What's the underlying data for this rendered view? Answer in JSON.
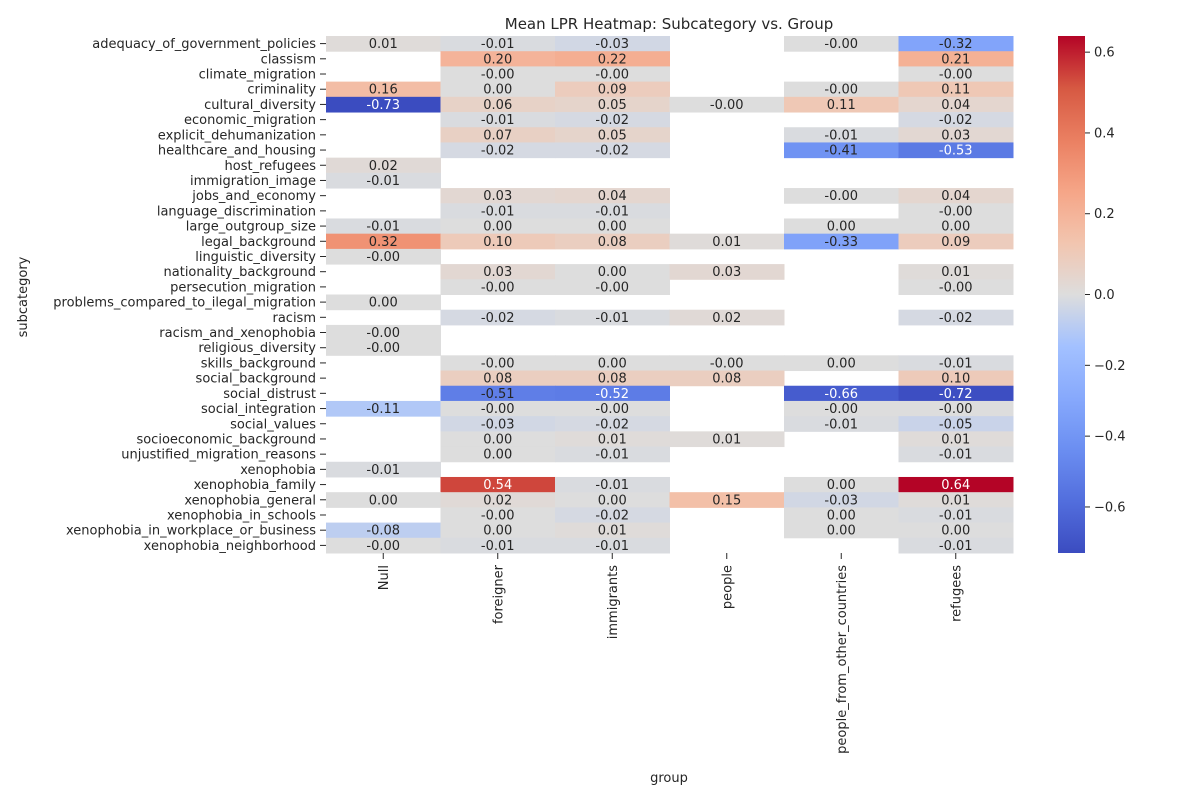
{
  "chart_data": {
    "type": "heatmap",
    "title": "Mean LPR Heatmap: Subcategory vs. Group",
    "xlabel": "group",
    "ylabel": "subcategory",
    "columns": [
      "Null",
      "foreigner",
      "immigrants",
      "people",
      "people_from_other_countries",
      "refugees"
    ],
    "rows": [
      "adequacy_of_government_policies",
      "classism",
      "climate_migration",
      "criminality",
      "cultural_diversity",
      "economic_migration",
      "explicit_dehumanization",
      "healthcare_and_housing",
      "host_refugees",
      "immigration_image",
      "jobs_and_economy",
      "language_discrimination",
      "large_outgroup_size",
      "legal_background",
      "linguistic_diversity",
      "nationality_background",
      "persecution_migration",
      "problems_compared_to_ilegal_migration",
      "racism",
      "racism_and_xenophobia",
      "religious_diversity",
      "skills_background",
      "social_background",
      "social_distrust",
      "social_integration",
      "social_values",
      "socioeconomic_background",
      "unjustified_migration_reasons",
      "xenophobia",
      "xenophobia_family",
      "xenophobia_general",
      "xenophobia_in_schools",
      "xenophobia_in_workplace_or_business",
      "xenophobia_neighborhood"
    ],
    "values": [
      [
        0.01,
        -0.01,
        -0.03,
        null,
        -0.0,
        -0.32
      ],
      [
        null,
        0.2,
        0.22,
        null,
        null,
        0.21
      ],
      [
        null,
        -0.0,
        -0.0,
        null,
        null,
        -0.0
      ],
      [
        0.16,
        0.0,
        0.09,
        null,
        -0.0,
        0.11
      ],
      [
        -0.73,
        0.06,
        0.05,
        -0.0,
        0.11,
        0.04
      ],
      [
        null,
        -0.01,
        -0.02,
        null,
        null,
        -0.02
      ],
      [
        null,
        0.07,
        0.05,
        null,
        -0.01,
        0.03
      ],
      [
        null,
        -0.02,
        -0.02,
        null,
        -0.41,
        -0.53
      ],
      [
        0.02,
        null,
        null,
        null,
        null,
        null
      ],
      [
        -0.01,
        null,
        null,
        null,
        null,
        null
      ],
      [
        null,
        0.03,
        0.04,
        null,
        -0.0,
        0.04
      ],
      [
        null,
        -0.01,
        -0.01,
        null,
        null,
        -0.0
      ],
      [
        -0.01,
        0.0,
        0.0,
        null,
        0.0,
        0.0
      ],
      [
        0.32,
        0.1,
        0.08,
        0.01,
        -0.33,
        0.09
      ],
      [
        -0.0,
        null,
        null,
        null,
        null,
        null
      ],
      [
        null,
        0.03,
        0.0,
        0.03,
        null,
        0.01
      ],
      [
        null,
        -0.0,
        -0.0,
        null,
        null,
        -0.0
      ],
      [
        0.0,
        null,
        null,
        null,
        null,
        null
      ],
      [
        null,
        -0.02,
        -0.01,
        0.02,
        null,
        -0.02
      ],
      [
        -0.0,
        null,
        null,
        null,
        null,
        null
      ],
      [
        -0.0,
        null,
        null,
        null,
        null,
        null
      ],
      [
        null,
        -0.0,
        0.0,
        -0.0,
        0.0,
        -0.01
      ],
      [
        null,
        0.08,
        0.08,
        0.08,
        null,
        0.1
      ],
      [
        null,
        -0.51,
        -0.52,
        null,
        -0.66,
        -0.72
      ],
      [
        -0.11,
        -0.0,
        -0.0,
        null,
        -0.0,
        -0.0
      ],
      [
        null,
        -0.03,
        -0.02,
        null,
        -0.01,
        -0.05
      ],
      [
        null,
        0.0,
        0.01,
        0.01,
        null,
        0.01
      ],
      [
        null,
        0.0,
        -0.01,
        null,
        null,
        -0.01
      ],
      [
        -0.01,
        null,
        null,
        null,
        null,
        null
      ],
      [
        null,
        0.54,
        -0.01,
        null,
        0.0,
        0.64
      ],
      [
        0.0,
        0.02,
        0.0,
        0.15,
        -0.03,
        0.01
      ],
      [
        null,
        -0.0,
        -0.02,
        null,
        0.0,
        -0.01
      ],
      [
        -0.08,
        0.0,
        0.01,
        null,
        0.0,
        0.0
      ],
      [
        -0.0,
        -0.01,
        -0.01,
        null,
        null,
        -0.01
      ]
    ],
    "colormap": "coolwarm",
    "colorbar": {
      "vmin": -0.73,
      "vmax": 0.64,
      "center": 0,
      "ticks": [
        -0.6,
        -0.4,
        -0.2,
        0.0,
        0.2,
        0.4,
        0.6
      ],
      "tick_labels": [
        "−0.6",
        "−0.4",
        "−0.2",
        "0.0",
        "0.2",
        "0.4",
        "0.6"
      ]
    },
    "annotation_format": "2 decimals",
    "missing_cells": "blank",
    "grid": false
  }
}
